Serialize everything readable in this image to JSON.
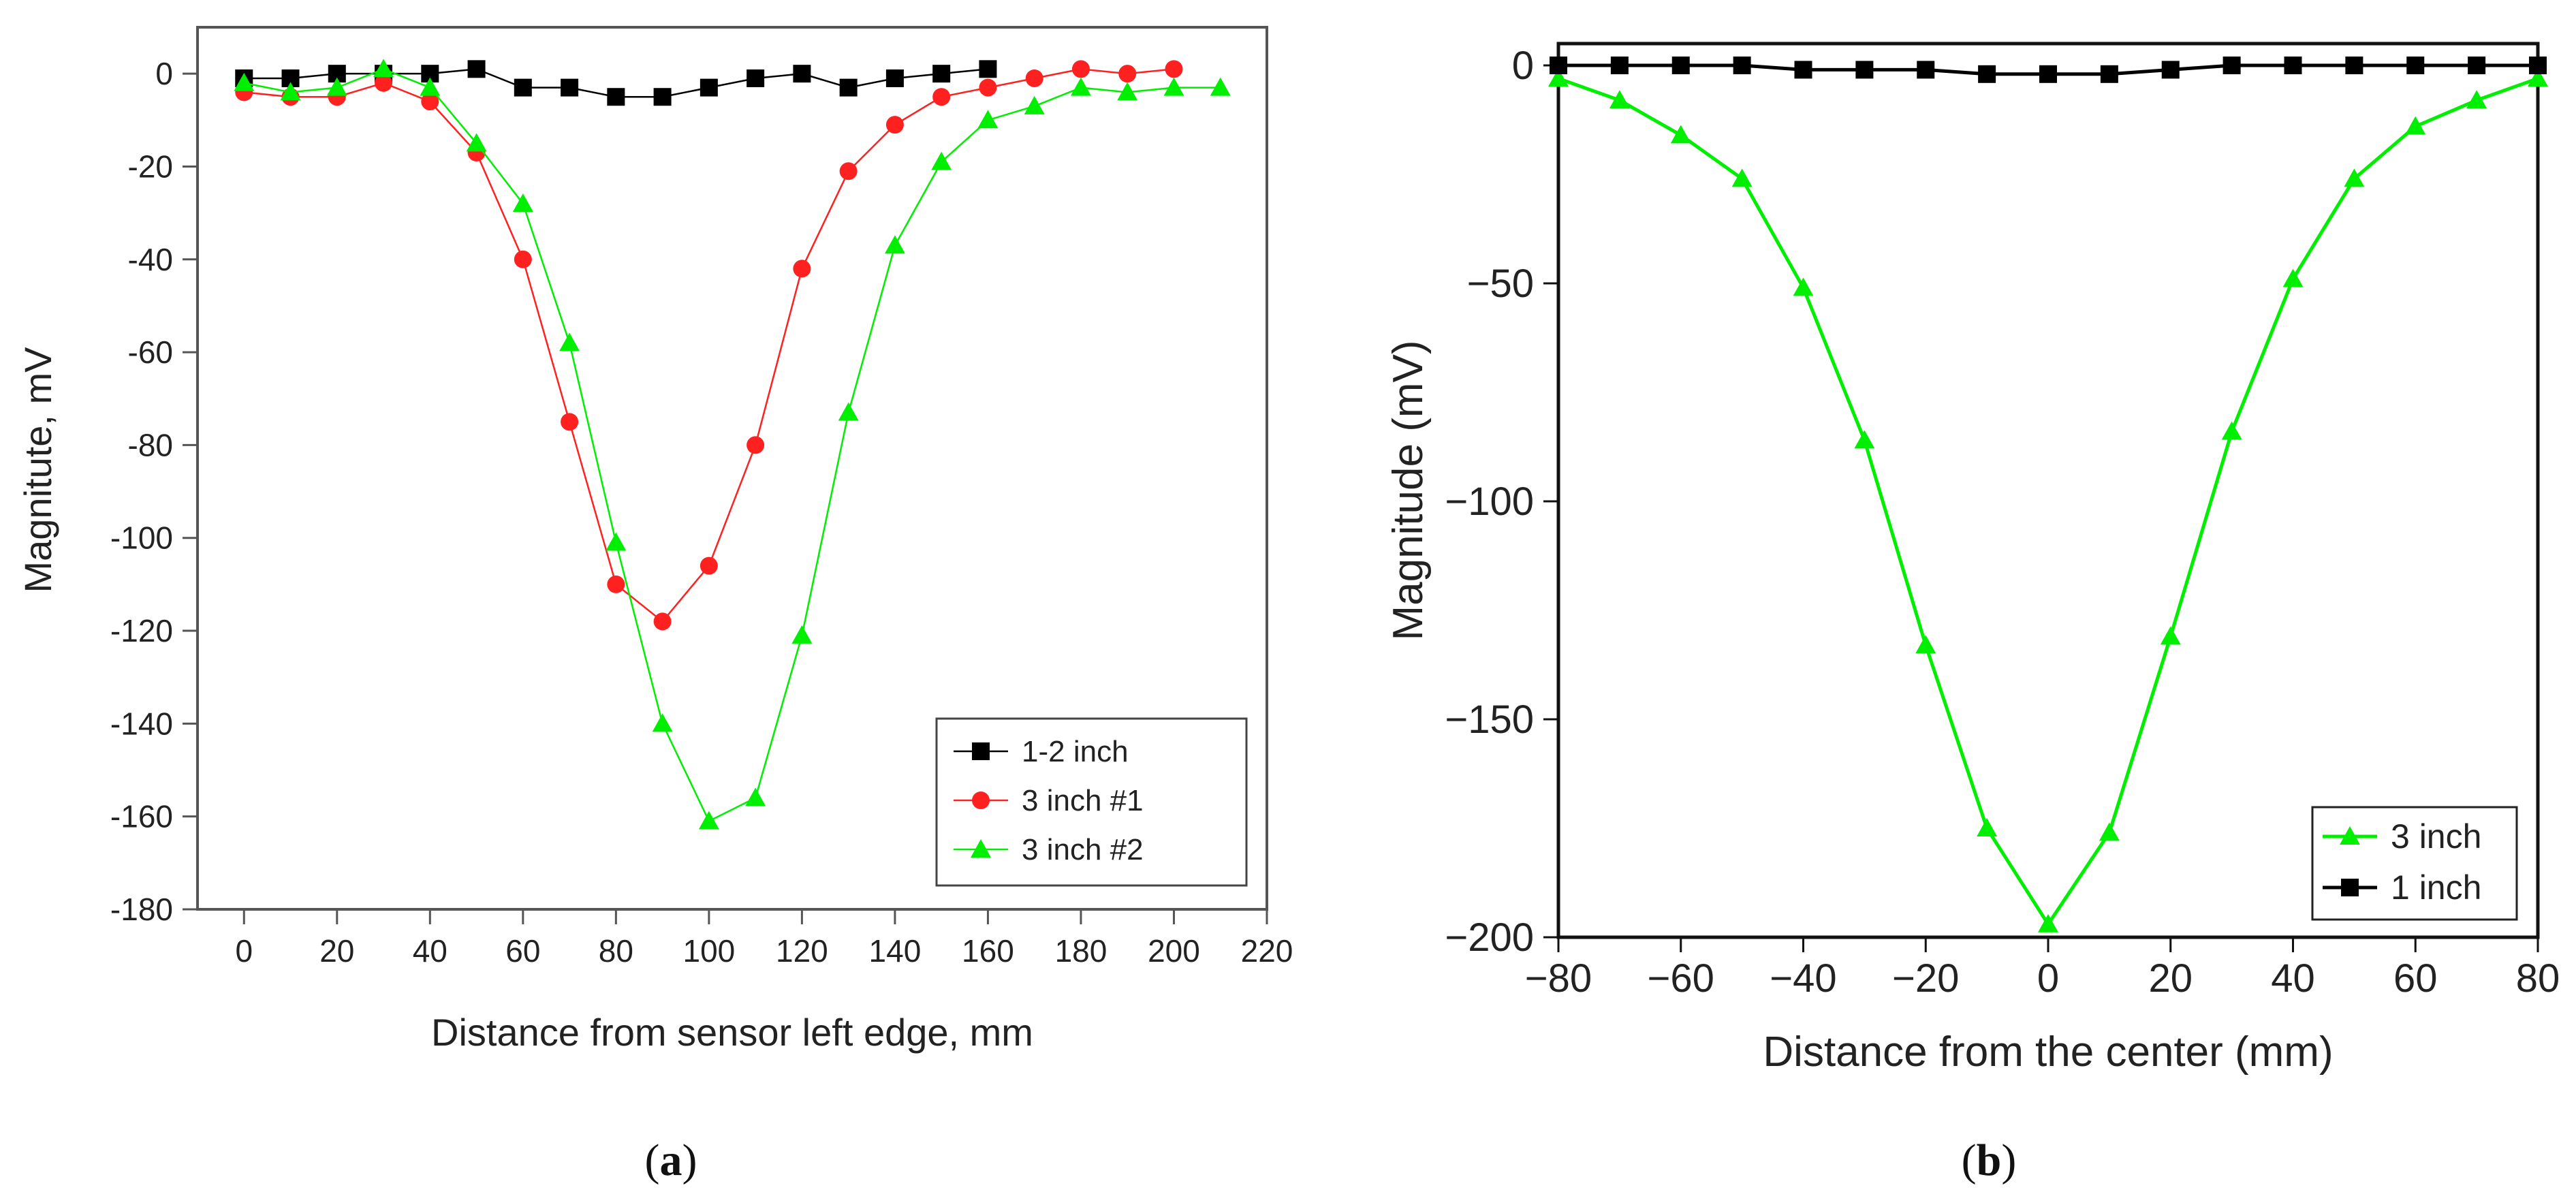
{
  "chart_data": [
    {
      "panel": "a",
      "type": "line",
      "title": "",
      "xlabel": "Distance from sensor left edge, mm",
      "ylabel": "Magnitute, mV",
      "xlim": [
        -10,
        220
      ],
      "ylim": [
        -180,
        10
      ],
      "xticks": [
        0,
        20,
        40,
        60,
        80,
        100,
        120,
        140,
        160,
        180,
        200,
        220
      ],
      "yticks": [
        0,
        -20,
        -40,
        -60,
        -80,
        -100,
        -120,
        -140,
        -160,
        -180
      ],
      "grid": false,
      "legend_position": "bottom-right",
      "series": [
        {
          "name": "1-2 inch",
          "color": "#000000",
          "marker": "square",
          "x": [
            0,
            10,
            20,
            30,
            40,
            50,
            60,
            70,
            80,
            90,
            100,
            110,
            120,
            130,
            140,
            150,
            160
          ],
          "y": [
            -1,
            -1,
            0,
            0,
            0,
            1,
            -3,
            -3,
            -5,
            -5,
            -3,
            -1,
            0,
            -3,
            -1,
            0,
            1
          ]
        },
        {
          "name": "3 inch #1",
          "color": "#ff2020",
          "marker": "circle",
          "x": [
            0,
            10,
            20,
            30,
            40,
            50,
            60,
            70,
            80,
            90,
            100,
            110,
            120,
            130,
            140,
            150,
            160,
            170,
            180,
            190,
            200
          ],
          "y": [
            -4,
            -5,
            -5,
            -2,
            -6,
            -17,
            -40,
            -75,
            -110,
            -118,
            -106,
            -80,
            -42,
            -21,
            -11,
            -5,
            -3,
            -1,
            1,
            0,
            1
          ]
        },
        {
          "name": "3 inch #2",
          "color": "#00ee00",
          "marker": "triangle",
          "x": [
            0,
            10,
            20,
            30,
            40,
            50,
            60,
            70,
            80,
            90,
            100,
            110,
            120,
            130,
            140,
            150,
            160,
            170,
            180,
            190,
            200,
            210
          ],
          "y": [
            -2,
            -4,
            -3,
            1,
            -3,
            -15,
            -28,
            -58,
            -101,
            -140,
            -161,
            -156,
            -121,
            -73,
            -37,
            -19,
            -10,
            -7,
            -3,
            -4,
            -3,
            -3
          ]
        }
      ]
    },
    {
      "panel": "b",
      "type": "line",
      "title": "",
      "xlabel": "Distance from the center (mm)",
      "ylabel": "Magnitude (mV)",
      "xlim": [
        -80,
        80
      ],
      "ylim": [
        -200,
        5
      ],
      "xticks": [
        -80,
        -60,
        -40,
        -20,
        0,
        20,
        40,
        60,
        80
      ],
      "xtick_labels": [
        "−80",
        "−60",
        "−40",
        "−20",
        "0",
        "20",
        "40",
        "60",
        "80"
      ],
      "yticks": [
        0,
        -50,
        -100,
        -150,
        -200
      ],
      "ytick_labels": [
        "0",
        "−50",
        "−100",
        "−150",
        "−200"
      ],
      "grid": false,
      "legend_position": "bottom-right",
      "series": [
        {
          "name": "3 inch",
          "color": "#00ee00",
          "marker": "triangle",
          "x": [
            -80,
            -70,
            -60,
            -50,
            -40,
            -30,
            -20,
            -10,
            0,
            10,
            20,
            30,
            40,
            50,
            60,
            70,
            80
          ],
          "y": [
            -3,
            -8,
            -16,
            -26,
            -51,
            -86,
            -133,
            -175,
            -197,
            -176,
            -131,
            -84,
            -49,
            -26,
            -14,
            -8,
            -3
          ]
        },
        {
          "name": "1 inch",
          "color": "#000000",
          "marker": "square",
          "x": [
            -80,
            -70,
            -60,
            -50,
            -40,
            -30,
            -20,
            -10,
            0,
            10,
            20,
            30,
            40,
            50,
            60,
            70,
            80
          ],
          "y": [
            0,
            0,
            0,
            0,
            -1,
            -1,
            -1,
            -2,
            -2,
            -2,
            -1,
            0,
            0,
            0,
            0,
            0,
            0
          ]
        }
      ]
    }
  ],
  "panel_labels": {
    "a": {
      "open": "(",
      "letter": "a",
      "close": ")"
    },
    "b": {
      "open": "(",
      "letter": "b",
      "close": ")"
    }
  }
}
